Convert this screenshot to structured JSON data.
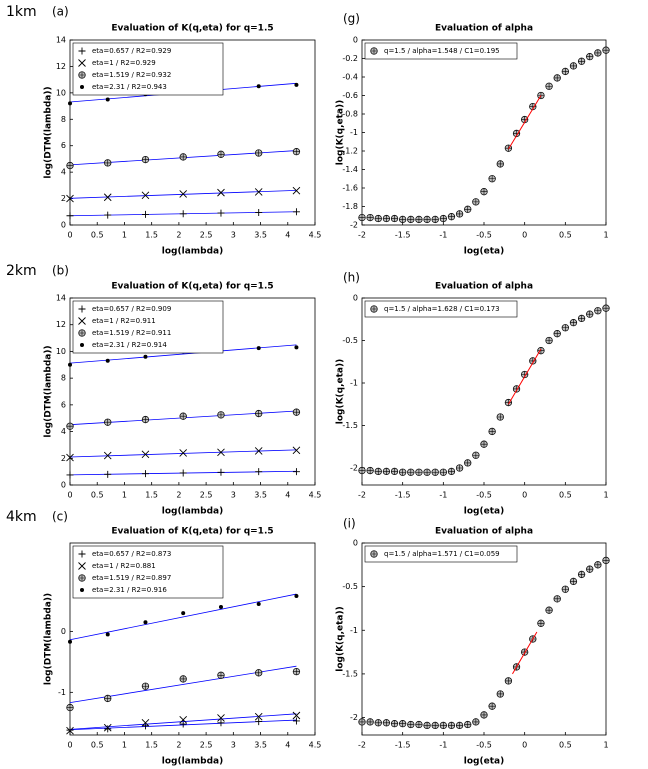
{
  "chart_data": [
    {
      "type": "scatter",
      "row_label": "1km",
      "panel_label": "(a)",
      "title": "Evaluation of K(q,eta) for q=1.5",
      "x_label": "log(lambda)",
      "y_label": "log(DTM(lambda))",
      "x": [
        0,
        0.693,
        1.386,
        2.079,
        2.773,
        3.466,
        4.159
      ],
      "xlim": [
        0,
        4.5
      ],
      "xticks": [
        0,
        0.5,
        1,
        1.5,
        2,
        2.5,
        3,
        3.5,
        4,
        4.5
      ],
      "ylim": [
        0,
        14
      ],
      "yticks": [
        0,
        2,
        4,
        6,
        8,
        10,
        12,
        14
      ],
      "fit_color": "#0000ff",
      "series": [
        {
          "name": "eta=0.657 / R2=0.929",
          "marker": "plus",
          "color": "#000000",
          "values": [
            0.7,
            0.75,
            0.8,
            0.85,
            0.9,
            0.95,
            1.0
          ]
        },
        {
          "name": "eta=1 / R2=0.929",
          "marker": "cross",
          "color": "#000000",
          "values": [
            2.0,
            2.1,
            2.25,
            2.35,
            2.45,
            2.5,
            2.6
          ]
        },
        {
          "name": "eta=1.519 / R2=0.932",
          "marker": "circled-plus",
          "color": "#000000",
          "values": [
            4.5,
            4.7,
            4.95,
            5.15,
            5.35,
            5.45,
            5.55
          ]
        },
        {
          "name": "eta=2.31 / R2=0.943",
          "marker": "dot",
          "color": "#000000",
          "values": [
            9.2,
            9.5,
            9.9,
            10.1,
            10.3,
            10.5,
            10.6
          ]
        }
      ]
    },
    {
      "type": "scatter",
      "panel_label": "(g)",
      "title": "Evaluation of alpha",
      "x_label": "log(eta)",
      "y_label": "log(K(q,eta))",
      "x": [
        -2,
        -1.9,
        -1.8,
        -1.7,
        -1.6,
        -1.5,
        -1.4,
        -1.3,
        -1.2,
        -1.1,
        -1,
        -0.9,
        -0.8,
        -0.7,
        -0.6,
        -0.5,
        -0.4,
        -0.3,
        -0.2,
        -0.1,
        0,
        0.1,
        0.2,
        0.3,
        0.4,
        0.5,
        0.6,
        0.7,
        0.8,
        0.9,
        1
      ],
      "xlim": [
        -2,
        1
      ],
      "xticks": [
        -2,
        -1.5,
        -1,
        -0.5,
        0,
        0.5,
        1
      ],
      "ylim": [
        -2,
        0
      ],
      "yticks": [
        0,
        -0.2,
        -0.4,
        -0.6,
        -0.8,
        -1,
        -1.2,
        -1.4,
        -1.6,
        -1.8,
        -2
      ],
      "series": [
        {
          "name": "q=1.5 / alpha=1.548 / C1=0.195",
          "marker": "circled-plus",
          "color": "#000000",
          "values": [
            -1.92,
            -1.92,
            -1.93,
            -1.93,
            -1.93,
            -1.94,
            -1.94,
            -1.94,
            -1.94,
            -1.94,
            -1.93,
            -1.91,
            -1.88,
            -1.83,
            -1.75,
            -1.64,
            -1.5,
            -1.34,
            -1.17,
            -1.01,
            -0.86,
            -0.72,
            -0.6,
            -0.5,
            -0.41,
            -0.34,
            -0.28,
            -0.23,
            -0.18,
            -0.14,
            -0.11
          ]
        }
      ],
      "fit": {
        "color": "#ff0000",
        "x": [
          -0.2,
          0.2
        ],
        "values": [
          -1.18,
          -0.6
        ]
      }
    },
    {
      "type": "scatter",
      "row_label": "2km",
      "panel_label": "(b)",
      "title": "Evaluation of K(q,eta) for q=1.5",
      "x_label": "log(lambda)",
      "y_label": "log(DTM(lambda))",
      "x": [
        0,
        0.693,
        1.386,
        2.079,
        2.773,
        3.466,
        4.159
      ],
      "xlim": [
        0,
        4.5
      ],
      "xticks": [
        0,
        0.5,
        1,
        1.5,
        2,
        2.5,
        3,
        3.5,
        4,
        4.5
      ],
      "ylim": [
        0,
        14
      ],
      "yticks": [
        0,
        2,
        4,
        6,
        8,
        10,
        12,
        14
      ],
      "fit_color": "#0000ff",
      "series": [
        {
          "name": "eta=0.657 / R2=0.909",
          "marker": "plus",
          "color": "#000000",
          "values": [
            0.75,
            0.8,
            0.85,
            0.9,
            0.95,
            1.0,
            1.0
          ]
        },
        {
          "name": "eta=1 / R2=0.911",
          "marker": "cross",
          "color": "#000000",
          "values": [
            2.05,
            2.2,
            2.3,
            2.4,
            2.45,
            2.55,
            2.6
          ]
        },
        {
          "name": "eta=1.519 / R2=0.911",
          "marker": "circled-plus",
          "color": "#000000",
          "values": [
            4.4,
            4.7,
            4.9,
            5.15,
            5.25,
            5.35,
            5.45
          ]
        },
        {
          "name": "eta=2.31 / R2=0.914",
          "marker": "dot",
          "color": "#000000",
          "values": [
            9.0,
            9.3,
            9.6,
            10.0,
            10.2,
            10.25,
            10.3
          ]
        }
      ]
    },
    {
      "type": "scatter",
      "panel_label": "(h)",
      "title": "Evaluation of alpha",
      "x_label": "log(eta)",
      "y_label": "log(K(q,eta))",
      "x": [
        -2,
        -1.9,
        -1.8,
        -1.7,
        -1.6,
        -1.5,
        -1.4,
        -1.3,
        -1.2,
        -1.1,
        -1,
        -0.9,
        -0.8,
        -0.7,
        -0.6,
        -0.5,
        -0.4,
        -0.3,
        -0.2,
        -0.1,
        0,
        0.1,
        0.2,
        0.3,
        0.4,
        0.5,
        0.6,
        0.7,
        0.8,
        0.9,
        1
      ],
      "xlim": [
        -2,
        1
      ],
      "xticks": [
        -2,
        -1.5,
        -1,
        -0.5,
        0,
        0.5,
        1
      ],
      "ylim": [
        -2.2,
        0
      ],
      "yticks": [
        0,
        -0.5,
        -1,
        -1.5,
        -2
      ],
      "series": [
        {
          "name": "q=1.5 / alpha=1.628 / C1=0.173",
          "marker": "circled-plus",
          "color": "#000000",
          "values": [
            -2.03,
            -2.03,
            -2.04,
            -2.04,
            -2.04,
            -2.05,
            -2.05,
            -2.05,
            -2.05,
            -2.05,
            -2.05,
            -2.04,
            -2.0,
            -1.94,
            -1.85,
            -1.72,
            -1.57,
            -1.4,
            -1.23,
            -1.07,
            -0.9,
            -0.74,
            -0.62,
            -0.5,
            -0.42,
            -0.35,
            -0.29,
            -0.24,
            -0.19,
            -0.15,
            -0.12
          ]
        }
      ],
      "fit": {
        "color": "#ff0000",
        "x": [
          -0.2,
          0.2
        ],
        "values": [
          -1.25,
          -0.6
        ]
      }
    },
    {
      "type": "scatter",
      "row_label": "4km",
      "panel_label": "(c)",
      "title": "Evaluation of K(q,eta) for q=1.5",
      "x_label": "log(lambda)",
      "y_label": "log(DTM(lambda))",
      "x": [
        0,
        0.693,
        1.386,
        2.079,
        2.773,
        3.466,
        4.159
      ],
      "xlim": [
        0,
        4.5
      ],
      "xticks": [
        0,
        0.5,
        1,
        1.5,
        2,
        2.5,
        3,
        3.5,
        4,
        4.5
      ],
      "ylim": [
        -1.7,
        1.45
      ],
      "yticks": [
        -1,
        0
      ],
      "fit_color": "#0000ff",
      "series": [
        {
          "name": "eta=0.657 / R2=0.873",
          "marker": "plus",
          "color": "#000000",
          "values": [
            -1.62,
            -1.6,
            -1.55,
            -1.52,
            -1.5,
            -1.48,
            -1.47
          ]
        },
        {
          "name": "eta=1 / R2=0.881",
          "marker": "cross",
          "color": "#000000",
          "values": [
            -1.63,
            -1.58,
            -1.5,
            -1.45,
            -1.42,
            -1.4,
            -1.38
          ]
        },
        {
          "name": "eta=1.519 / R2=0.897",
          "marker": "circled-plus",
          "color": "#000000",
          "values": [
            -1.25,
            -1.1,
            -0.9,
            -0.78,
            -0.72,
            -0.68,
            -0.66
          ]
        },
        {
          "name": "eta=2.31 / R2=0.916",
          "marker": "dot",
          "color": "#000000",
          "values": [
            -0.17,
            -0.05,
            0.15,
            0.3,
            0.4,
            0.45,
            0.58
          ]
        }
      ]
    },
    {
      "type": "scatter",
      "panel_label": "(i)",
      "title": "Evaluation of alpha",
      "x_label": "log(eta)",
      "y_label": "log(K(q,eta))",
      "x": [
        -2,
        -1.9,
        -1.8,
        -1.7,
        -1.6,
        -1.5,
        -1.4,
        -1.3,
        -1.2,
        -1.1,
        -1,
        -0.9,
        -0.8,
        -0.7,
        -0.6,
        -0.5,
        -0.4,
        -0.3,
        -0.2,
        -0.1,
        0,
        0.1,
        0.2,
        0.3,
        0.4,
        0.5,
        0.6,
        0.7,
        0.8,
        0.9,
        1
      ],
      "xlim": [
        -2,
        1
      ],
      "xticks": [
        -2,
        -1.5,
        -1,
        -0.5,
        0,
        0.5,
        1
      ],
      "ylim": [
        -2.2,
        0
      ],
      "yticks": [
        0,
        -0.5,
        -1,
        -1.5,
        -2
      ],
      "series": [
        {
          "name": "q=1.5 / alpha=1.571 / C1=0.059",
          "marker": "circled-plus",
          "color": "#000000",
          "values": [
            -2.05,
            -2.05,
            -2.06,
            -2.06,
            -2.07,
            -2.07,
            -2.08,
            -2.08,
            -2.09,
            -2.09,
            -2.09,
            -2.09,
            -2.09,
            -2.08,
            -2.05,
            -1.97,
            -1.87,
            -1.73,
            -1.58,
            -1.42,
            -1.25,
            -1.1,
            -0.92,
            -0.77,
            -0.64,
            -0.53,
            -0.44,
            -0.36,
            -0.3,
            -0.25,
            -0.2
          ]
        }
      ],
      "fit": {
        "color": "#ff0000",
        "x": [
          -0.15,
          0.15
        ],
        "values": [
          -1.5,
          -1.02
        ]
      }
    }
  ]
}
